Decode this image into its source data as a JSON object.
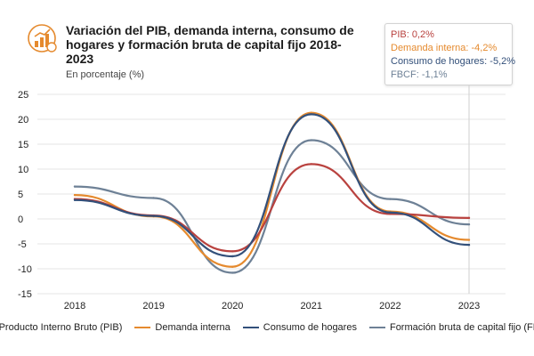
{
  "title": "Variación del PIB, demanda interna, consumo de hogares y formación bruta de capital fijo 2018-2023",
  "subtitle": "En porcentaje (%)",
  "tooltip": {
    "pib": "PIB: 0,2%",
    "demanda": "Demanda interna: -4,2%",
    "consumo": "Consumo de hogares: -5,2%",
    "fbcf": "FBCF: -1,1%"
  },
  "colors": {
    "pib": "#b9423f",
    "demanda": "#e58a2e",
    "consumo": "#33507a",
    "fbcf": "#6e8196"
  },
  "chart_data": {
    "type": "line",
    "title": "Variación del PIB, demanda interna, consumo de hogares y formación bruta de capital fijo 2018-2023",
    "subtitle": "En porcentaje (%)",
    "xlabel": "",
    "ylabel": "",
    "categories": [
      "2018",
      "2019",
      "2020",
      "2021",
      "2022",
      "2023"
    ],
    "ylim": [
      -15,
      25
    ],
    "yticks": [
      "25",
      "20",
      "15",
      "10",
      "5",
      "0",
      "-5",
      "-10",
      "-15"
    ],
    "grid": "horizontal",
    "series": [
      {
        "name": "Producto Interno Bruto (PIB)",
        "key": "pib",
        "values": [
          4.0,
          0.7,
          -6.5,
          11.0,
          1.0,
          0.2
        ]
      },
      {
        "name": "Demanda interna",
        "key": "demanda",
        "values": [
          4.8,
          0.5,
          -9.6,
          21.3,
          1.5,
          -4.2
        ]
      },
      {
        "name": "Consumo de hogares",
        "key": "consumo",
        "values": [
          3.8,
          0.6,
          -7.5,
          21.0,
          1.3,
          -5.2
        ]
      },
      {
        "name": "Formación bruta de capital fijo (FBCF)",
        "key": "fbcf",
        "values": [
          6.5,
          4.2,
          -10.8,
          15.8,
          4.0,
          -1.1
        ]
      }
    ]
  }
}
